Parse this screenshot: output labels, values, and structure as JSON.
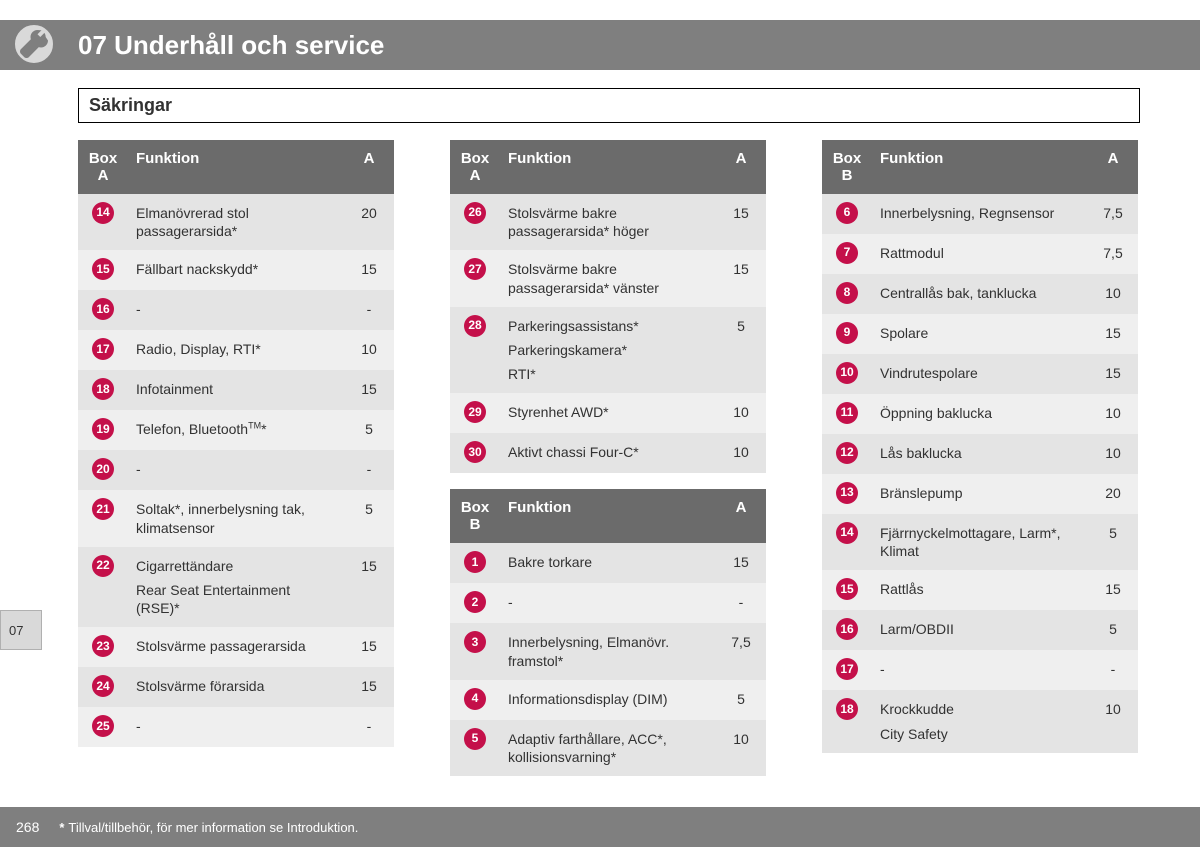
{
  "header": {
    "chapter_title": "07 Underhåll och service",
    "section_title": "Säkringar",
    "side_tab": "07",
    "icon": "wrench-icon"
  },
  "columns": [
    {
      "tables": [
        {
          "head": {
            "box": "Box A",
            "func": "Funktion",
            "amp": "A"
          },
          "rows": [
            {
              "n": "14",
              "func": "Elmanövrerad stol passagerarsida*",
              "a": "20"
            },
            {
              "n": "15",
              "func": "Fällbart nackskydd*",
              "a": "15"
            },
            {
              "n": "16",
              "func": "-",
              "a": "-"
            },
            {
              "n": "17",
              "func": "Radio, Display, RTI*",
              "a": "10"
            },
            {
              "n": "18",
              "func": "Infotainment",
              "a": "15"
            },
            {
              "n": "19",
              "func": "Telefon, Bluetooth™*",
              "a": "5"
            },
            {
              "n": "20",
              "func": "-",
              "a": "-"
            },
            {
              "n": "21",
              "func": "Soltak*, innerbelysning tak, klimatsensor",
              "a": "5"
            },
            {
              "n": "22",
              "func_lines": [
                "Cigarrettändare",
                "Rear Seat Entertainment (RSE)*"
              ],
              "a": "15"
            },
            {
              "n": "23",
              "func": "Stolsvärme passagerarsida",
              "a": "15"
            },
            {
              "n": "24",
              "func": "Stolsvärme förarsida",
              "a": "15"
            },
            {
              "n": "25",
              "func": "-",
              "a": "-"
            }
          ]
        }
      ]
    },
    {
      "tables": [
        {
          "head": {
            "box": "Box A",
            "func": "Funktion",
            "amp": "A"
          },
          "rows": [
            {
              "n": "26",
              "func": "Stolsvärme bakre passagerarsida* höger",
              "a": "15"
            },
            {
              "n": "27",
              "func": "Stolsvärme bakre passagerarsida* vänster",
              "a": "15"
            },
            {
              "n": "28",
              "func_lines": [
                "Parkeringsassistans*",
                "Parkeringskamera*",
                "RTI*"
              ],
              "a": "5"
            },
            {
              "n": "29",
              "func": "Styrenhet AWD*",
              "a": "10"
            },
            {
              "n": "30",
              "func": "Aktivt chassi Four-C*",
              "a": "10"
            }
          ]
        },
        {
          "head": {
            "box": "Box B",
            "func": "Funktion",
            "amp": "A"
          },
          "rows": [
            {
              "n": "1",
              "func": "Bakre torkare",
              "a": "15"
            },
            {
              "n": "2",
              "func": "-",
              "a": "-"
            },
            {
              "n": "3",
              "func": "Innerbelysning, Elmanövr. framstol*",
              "a": "7,5"
            },
            {
              "n": "4",
              "func": "Informationsdisplay (DIM)",
              "a": "5"
            },
            {
              "n": "5",
              "func": "Adaptiv farthållare, ACC*, kollisionsvarning*",
              "a": "10"
            }
          ]
        }
      ]
    },
    {
      "tables": [
        {
          "head": {
            "box": "Box B",
            "func": "Funktion",
            "amp": "A"
          },
          "rows": [
            {
              "n": "6",
              "func": "Innerbelysning, Regnsensor",
              "a": "7,5"
            },
            {
              "n": "7",
              "func": "Rattmodul",
              "a": "7,5"
            },
            {
              "n": "8",
              "func": "Centrallås bak, tanklucka",
              "a": "10"
            },
            {
              "n": "9",
              "func": "Spolare",
              "a": "15"
            },
            {
              "n": "10",
              "func": "Vindrutespolare",
              "a": "15"
            },
            {
              "n": "11",
              "func": "Öppning baklucka",
              "a": "10"
            },
            {
              "n": "12",
              "func": "Lås baklucka",
              "a": "10"
            },
            {
              "n": "13",
              "func": "Bränslepump",
              "a": "20"
            },
            {
              "n": "14",
              "func": "Fjärrnyckelmottagare, Larm*, Klimat",
              "a": "5"
            },
            {
              "n": "15",
              "func": "Rattlås",
              "a": "15"
            },
            {
              "n": "16",
              "func": "Larm/OBDII",
              "a": "5"
            },
            {
              "n": "17",
              "func": "-",
              "a": "-"
            },
            {
              "n": "18",
              "func_lines": [
                "Krockkudde",
                "City Safety"
              ],
              "a": "10"
            }
          ]
        }
      ]
    }
  ],
  "footer": {
    "page_number": "268",
    "note": "Tillval/tillbehör, för mer information se Introduktion."
  },
  "colors": {
    "header_bg": "#7f7f7f",
    "badge_bg": "#c4104a",
    "row_odd": "#e4e4e4",
    "row_even": "#efefef",
    "text": "#323232"
  }
}
